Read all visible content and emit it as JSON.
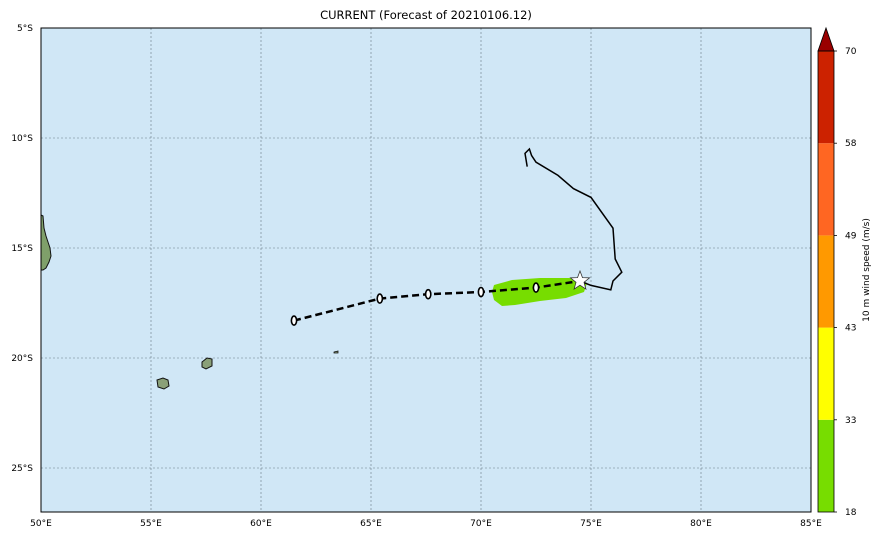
{
  "title": "CURRENT (Forecast of 20210106.12)",
  "map": {
    "ocean_color": "#d0e7f6",
    "lon_ticks": [
      "50°E",
      "55°E",
      "60°E",
      "65°E",
      "70°E",
      "75°E",
      "80°E",
      "85°E"
    ],
    "lat_ticks": [
      "5°S",
      "10°S",
      "15°S",
      "20°S",
      "25°S"
    ],
    "lon_values": [
      50,
      55,
      60,
      65,
      70,
      75,
      80,
      85
    ],
    "lat_values": [
      -5,
      -10,
      -15,
      -20,
      -25
    ],
    "lon_range": [
      50,
      85
    ],
    "lat_range": [
      -27,
      -5
    ],
    "gridlines": true
  },
  "colorbar": {
    "label": "10 m wind speed (m/s)",
    "ticks": [
      "18",
      "33",
      "43",
      "49",
      "58",
      "70"
    ],
    "colors": [
      "#77dd00",
      "#ffff00",
      "#ff9900",
      "#ff6622",
      "#cc2200",
      "#990000"
    ]
  },
  "forecast_track": {
    "style": "dashed",
    "points": [
      {
        "lon": 61.5,
        "lat": -18.3
      },
      {
        "lon": 65.4,
        "lat": -17.3
      },
      {
        "lon": 67.6,
        "lat": -17.1
      },
      {
        "lon": 70.0,
        "lat": -17.0
      },
      {
        "lon": 72.5,
        "lat": -16.8
      },
      {
        "lon": 74.5,
        "lat": -16.5
      }
    ]
  },
  "current_position": {
    "lon": 74.5,
    "lat": -16.5,
    "icon": "star-icon"
  },
  "past_track": {
    "points": [
      {
        "lon": 74.5,
        "lat": -16.5
      },
      {
        "lon": 75.0,
        "lat": -16.7
      },
      {
        "lon": 75.9,
        "lat": -16.9
      },
      {
        "lon": 76.0,
        "lat": -16.5
      },
      {
        "lon": 76.4,
        "lat": -16.1
      },
      {
        "lon": 76.1,
        "lat": -15.5
      },
      {
        "lon": 76.0,
        "lat": -14.1
      },
      {
        "lon": 75.0,
        "lat": -12.7
      },
      {
        "lon": 74.2,
        "lat": -12.3
      },
      {
        "lon": 73.5,
        "lat": -11.7
      },
      {
        "lon": 72.5,
        "lat": -11.1
      },
      {
        "lon": 72.3,
        "lat": -10.8
      },
      {
        "lon": 72.2,
        "lat": -10.5
      },
      {
        "lon": 72.0,
        "lat": -10.7
      },
      {
        "lon": 72.1,
        "lat": -11.3
      }
    ]
  },
  "wind_swath": {
    "color": "#77dd00",
    "range_ms": [
      18,
      33
    ]
  }
}
